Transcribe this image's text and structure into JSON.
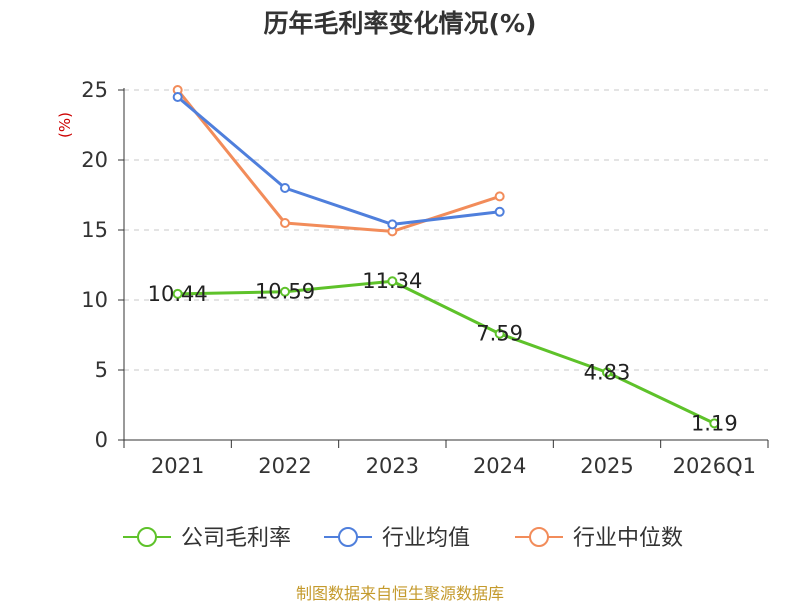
{
  "chart_data": {
    "type": "line",
    "title": "历年毛利率变化情况(%)",
    "ylabel": "(%)",
    "xlabel": "",
    "categories": [
      "2021",
      "2022",
      "2023",
      "2024",
      "2025",
      "2026Q1"
    ],
    "ylim": [
      0,
      25
    ],
    "yticks": [
      0,
      5,
      10,
      15,
      20,
      25
    ],
    "grid": true,
    "legend_position": "bottom",
    "series": [
      {
        "name": "公司毛利率",
        "color": "#5ec22a",
        "values": [
          10.44,
          10.59,
          11.34,
          7.59,
          4.83,
          1.19
        ],
        "labels": [
          "10.44",
          "10.59",
          "11.34",
          "7.59",
          "4.83",
          "1.19"
        ]
      },
      {
        "name": "行业均值",
        "color": "#4f7fdc",
        "values": [
          24.5,
          18.0,
          15.4,
          16.3,
          null,
          null
        ]
      },
      {
        "name": "行业中位数",
        "color": "#f28c5a",
        "values": [
          25.0,
          15.5,
          14.9,
          17.4,
          null,
          null
        ]
      }
    ],
    "source": "制图数据来自恒生聚源数据库"
  }
}
